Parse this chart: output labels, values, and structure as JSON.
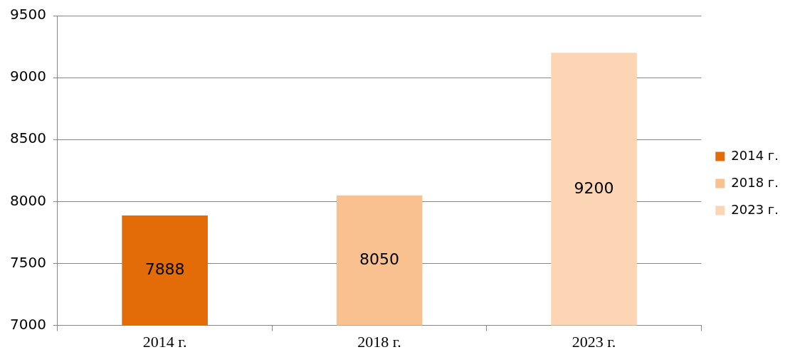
{
  "chart_data": {
    "type": "bar",
    "categories": [
      "2014 г.",
      "2018 г.",
      "2023 г."
    ],
    "series": [
      {
        "name": "2014 г.",
        "color": "#e36c09",
        "values": [
          7888,
          null,
          null
        ]
      },
      {
        "name": "2018 г.",
        "color": "#f9c090",
        "values": [
          null,
          8050,
          null
        ]
      },
      {
        "name": "2023 г.",
        "color": "#fcd5b5",
        "values": [
          null,
          null,
          9200
        ]
      }
    ],
    "ylim": [
      7000,
      9500
    ],
    "yticks": [
      7000,
      7500,
      8000,
      8500,
      9000,
      9500
    ],
    "grid": "y",
    "legend": "right",
    "data_labels": true
  }
}
